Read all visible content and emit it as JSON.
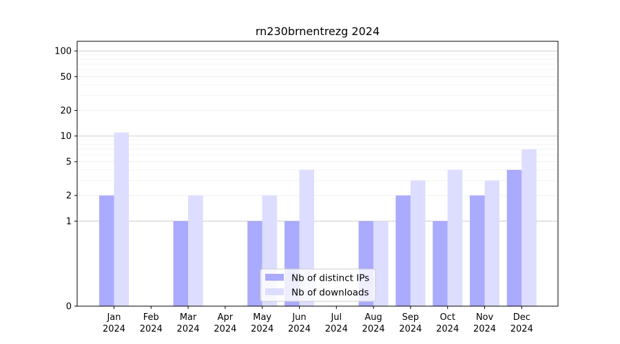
{
  "chart_data": {
    "type": "bar",
    "title": "rn230brnentrezg 2024",
    "xlabel": "",
    "ylabel": "",
    "y_scale": "symlog",
    "ylim": [
      0,
      130
    ],
    "y_ticks": [
      {
        "value": 0,
        "label": "0"
      },
      {
        "value": 1,
        "label": "1"
      },
      {
        "value": 2,
        "label": "2"
      },
      {
        "value": 5,
        "label": "5"
      },
      {
        "value": 10,
        "label": "10"
      },
      {
        "value": 20,
        "label": "20"
      },
      {
        "value": 50,
        "label": "50"
      },
      {
        "value": 100,
        "label": "100"
      }
    ],
    "categories": [
      {
        "month": "Jan",
        "year": "2024"
      },
      {
        "month": "Feb",
        "year": "2024"
      },
      {
        "month": "Mar",
        "year": "2024"
      },
      {
        "month": "Apr",
        "year": "2024"
      },
      {
        "month": "May",
        "year": "2024"
      },
      {
        "month": "Jun",
        "year": "2024"
      },
      {
        "month": "Jul",
        "year": "2024"
      },
      {
        "month": "Aug",
        "year": "2024"
      },
      {
        "month": "Sep",
        "year": "2024"
      },
      {
        "month": "Oct",
        "year": "2024"
      },
      {
        "month": "Nov",
        "year": "2024"
      },
      {
        "month": "Dec",
        "year": "2024"
      }
    ],
    "series": [
      {
        "name": "Nb of distinct IPs",
        "color": "#aaaaff",
        "values": [
          2,
          0,
          1,
          0,
          1,
          1,
          0,
          1,
          2,
          1,
          2,
          4
        ]
      },
      {
        "name": "Nb of downloads",
        "color": "#ddddff",
        "values": [
          11,
          0,
          2,
          0,
          2,
          4,
          0,
          1,
          3,
          4,
          3,
          7
        ]
      }
    ],
    "grid": true,
    "legend": "lower-center"
  }
}
